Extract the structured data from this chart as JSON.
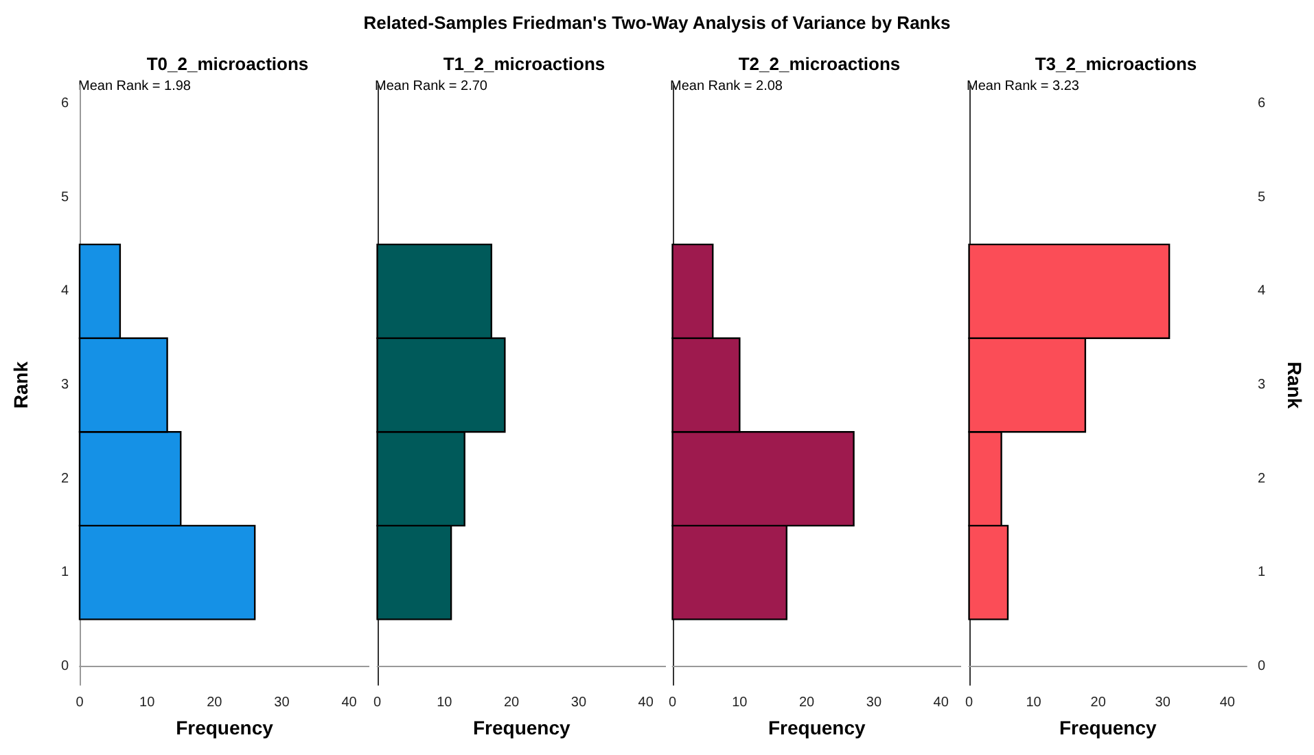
{
  "chart_data": [
    {
      "type": "other",
      "title": "Related-Samples Friedman's Two-Way Analysis of Variance by Ranks"
    },
    {
      "type": "histogram",
      "orientation": "horizontal",
      "title": "T0_2_microactions",
      "xlabel": "Frequency",
      "ylabel": "Rank",
      "annotations": [
        "Mean Rank = 1.98"
      ],
      "bins": [
        0.5,
        1.5,
        2.5,
        3.5,
        4.5
      ],
      "values": [
        26,
        15,
        13,
        6
      ],
      "color": "#1591e6",
      "xlim": [
        0,
        43
      ],
      "xticks": [
        0,
        10,
        20,
        30,
        40
      ],
      "ylim": [
        -0.2,
        6.2
      ],
      "yticks": [
        0,
        1,
        2,
        3,
        4,
        5,
        6
      ]
    },
    {
      "type": "histogram",
      "orientation": "horizontal",
      "title": "T1_2_microactions",
      "xlabel": "Frequency",
      "annotations": [
        "Mean Rank = 2.70"
      ],
      "bins": [
        0.5,
        1.5,
        2.5,
        3.5,
        4.5
      ],
      "values": [
        11,
        13,
        19,
        17
      ],
      "color": "#005a5a",
      "xlim": [
        0,
        43
      ],
      "xticks": [
        0,
        10,
        20,
        30,
        40
      ],
      "ylim": [
        -0.2,
        6.2
      ],
      "tick_labels": "x"
    },
    {
      "type": "histogram",
      "orientation": "horizontal",
      "title": "T2_2_microactions",
      "xlabel": "Frequency",
      "annotations": [
        "Mean Rank = 2.08"
      ],
      "bins": [
        0.5,
        1.5,
        2.5,
        3.5,
        4.5
      ],
      "values": [
        17,
        27,
        10,
        6
      ],
      "color": "#9e1a4e",
      "xlim": [
        0,
        43
      ],
      "xticks": [
        0,
        10,
        20,
        30,
        40
      ],
      "ylim": [
        -0.2,
        6.2
      ],
      "tick_labels": "x"
    },
    {
      "type": "histogram",
      "orientation": "horizontal",
      "title": "T3_2_microactions",
      "xlabel": "Frequency",
      "ylabel": "Rank",
      "annotations": [
        "Mean Rank = 3.23"
      ],
      "bins": [
        0.5,
        1.5,
        2.5,
        3.5,
        4.5
      ],
      "values": [
        6,
        5,
        18,
        31
      ],
      "color": "#fb4d57",
      "xlim": [
        0,
        43
      ],
      "xticks": [
        0,
        10,
        20,
        30,
        40
      ],
      "ylim": [
        -0.2,
        6.2
      ],
      "yticks": [
        0,
        1,
        2,
        3,
        4,
        5,
        6
      ]
    }
  ]
}
